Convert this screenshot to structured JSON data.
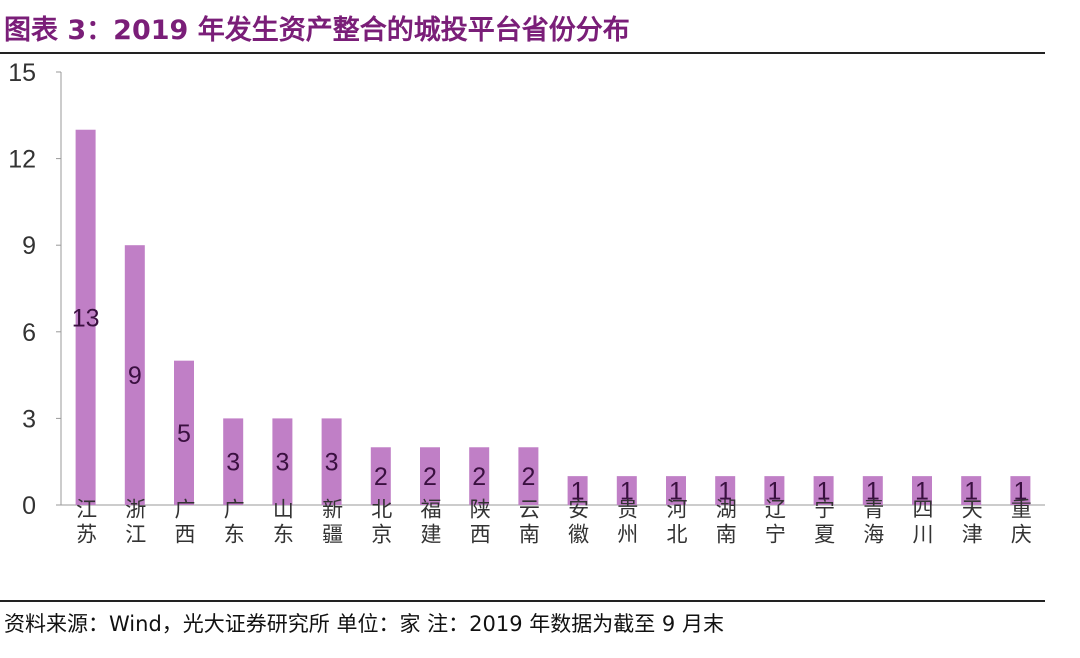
{
  "title": "图表 3：2019 年发生资产整合的城投平台省份分布",
  "source": "资料来源：Wind，光大证券研究所 单位：家   注：2019 年数据为截至 9 月末",
  "chart_data": {
    "type": "bar",
    "categories": [
      "江苏",
      "浙江",
      "广西",
      "广东",
      "山东",
      "新疆",
      "北京",
      "福建",
      "陕西",
      "云南",
      "安徽",
      "贵州",
      "河北",
      "湖南",
      "辽宁",
      "宁夏",
      "青海",
      "四川",
      "天津",
      "重庆"
    ],
    "values": [
      13,
      9,
      5,
      3,
      3,
      3,
      2,
      2,
      2,
      2,
      1,
      1,
      1,
      1,
      1,
      1,
      1,
      1,
      1,
      1
    ],
    "ylim": [
      0,
      15
    ],
    "yticks": [
      0,
      3,
      6,
      9,
      12,
      15
    ],
    "grid": false,
    "legend": "none",
    "bar_color": "#c07fc6",
    "title_color": "#7a1e78"
  }
}
